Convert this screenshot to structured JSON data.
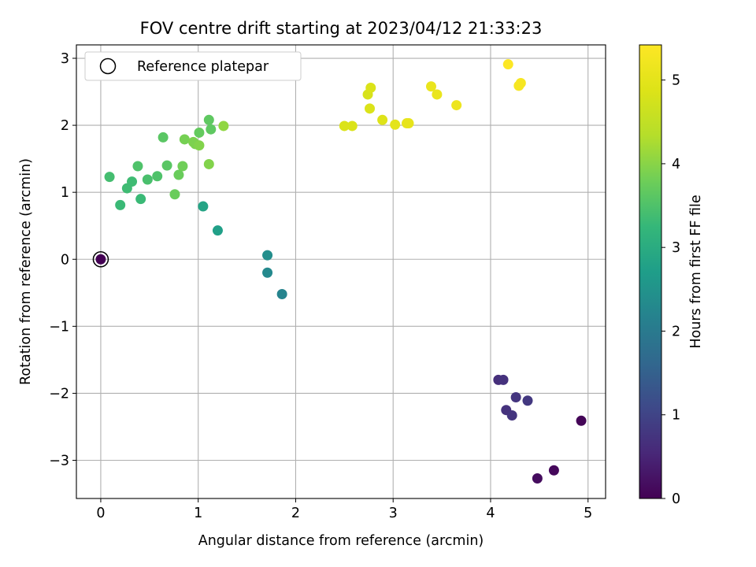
{
  "chart_data": {
    "type": "scatter",
    "title": "FOV centre drift starting at 2023/04/12 21:33:23",
    "xlabel": "Angular distance from reference (arcmin)",
    "ylabel": "Rotation from reference (arcmin)",
    "xlim": [
      -0.25,
      5.18
    ],
    "ylim": [
      -3.57,
      3.2
    ],
    "xticks": [
      "0",
      "1",
      "2",
      "3",
      "4",
      "5"
    ],
    "yticks": [
      "−3",
      "−2",
      "−1",
      "0",
      "1",
      "2",
      "3"
    ],
    "grid": true,
    "legend": {
      "placement": "top-left",
      "entries": [
        "Reference platepar"
      ]
    },
    "colorbar": {
      "label": "Hours from first FF file",
      "colormap": "viridis",
      "range": [
        0,
        5.42
      ],
      "ticks": [
        "0",
        "1",
        "2",
        "3",
        "4",
        "5"
      ]
    },
    "reference_point": {
      "x": 0,
      "y": 0
    },
    "points": [
      {
        "x": 0.0,
        "y": 0.0,
        "h": 0.0
      },
      {
        "x": 4.93,
        "y": -2.41,
        "h": 0.05
      },
      {
        "x": 4.65,
        "y": -3.15,
        "h": 0.1
      },
      {
        "x": 4.48,
        "y": -3.27,
        "h": 0.15
      },
      {
        "x": 4.08,
        "y": -1.8,
        "h": 0.65
      },
      {
        "x": 4.13,
        "y": -1.8,
        "h": 0.7
      },
      {
        "x": 4.16,
        "y": -2.25,
        "h": 0.7
      },
      {
        "x": 4.22,
        "y": -2.33,
        "h": 0.75
      },
      {
        "x": 4.26,
        "y": -2.06,
        "h": 0.75
      },
      {
        "x": 4.38,
        "y": -2.11,
        "h": 0.8
      },
      {
        "x": 1.86,
        "y": -0.52,
        "h": 2.2
      },
      {
        "x": 1.71,
        "y": -0.2,
        "h": 2.3
      },
      {
        "x": 1.71,
        "y": 0.06,
        "h": 2.4
      },
      {
        "x": 1.2,
        "y": 0.43,
        "h": 2.75
      },
      {
        "x": 1.05,
        "y": 0.79,
        "h": 2.85
      },
      {
        "x": 0.2,
        "y": 0.81,
        "h": 3.3
      },
      {
        "x": 0.41,
        "y": 0.9,
        "h": 3.3
      },
      {
        "x": 0.27,
        "y": 1.06,
        "h": 3.35
      },
      {
        "x": 0.32,
        "y": 1.16,
        "h": 3.35
      },
      {
        "x": 0.09,
        "y": 1.23,
        "h": 3.4
      },
      {
        "x": 0.48,
        "y": 1.19,
        "h": 3.45
      },
      {
        "x": 0.58,
        "y": 1.24,
        "h": 3.5
      },
      {
        "x": 0.38,
        "y": 1.39,
        "h": 3.5
      },
      {
        "x": 0.68,
        "y": 1.4,
        "h": 3.6
      },
      {
        "x": 0.64,
        "y": 1.82,
        "h": 3.6
      },
      {
        "x": 1.11,
        "y": 2.08,
        "h": 3.65
      },
      {
        "x": 1.13,
        "y": 1.94,
        "h": 3.65
      },
      {
        "x": 1.01,
        "y": 1.89,
        "h": 3.7
      },
      {
        "x": 0.76,
        "y": 0.97,
        "h": 3.75
      },
      {
        "x": 0.8,
        "y": 1.26,
        "h": 3.75
      },
      {
        "x": 0.84,
        "y": 1.39,
        "h": 3.8
      },
      {
        "x": 0.86,
        "y": 1.79,
        "h": 3.85
      },
      {
        "x": 0.95,
        "y": 1.75,
        "h": 3.9
      },
      {
        "x": 0.97,
        "y": 1.72,
        "h": 3.9
      },
      {
        "x": 1.01,
        "y": 1.7,
        "h": 3.95
      },
      {
        "x": 1.11,
        "y": 1.42,
        "h": 3.95
      },
      {
        "x": 1.26,
        "y": 1.99,
        "h": 4.05
      },
      {
        "x": 2.5,
        "y": 1.99,
        "h": 4.85
      },
      {
        "x": 2.58,
        "y": 1.99,
        "h": 4.85
      },
      {
        "x": 2.74,
        "y": 2.46,
        "h": 4.8
      },
      {
        "x": 2.77,
        "y": 2.56,
        "h": 4.85
      },
      {
        "x": 2.76,
        "y": 2.25,
        "h": 4.85
      },
      {
        "x": 2.89,
        "y": 2.08,
        "h": 4.9
      },
      {
        "x": 3.02,
        "y": 2.01,
        "h": 5.0
      },
      {
        "x": 3.14,
        "y": 2.03,
        "h": 5.05
      },
      {
        "x": 3.16,
        "y": 2.03,
        "h": 5.05
      },
      {
        "x": 3.39,
        "y": 2.58,
        "h": 5.1
      },
      {
        "x": 3.45,
        "y": 2.46,
        "h": 5.1
      },
      {
        "x": 3.65,
        "y": 2.3,
        "h": 5.15
      },
      {
        "x": 4.18,
        "y": 2.91,
        "h": 5.4
      },
      {
        "x": 4.29,
        "y": 2.59,
        "h": 5.3
      },
      {
        "x": 4.31,
        "y": 2.63,
        "h": 5.3
      }
    ]
  }
}
